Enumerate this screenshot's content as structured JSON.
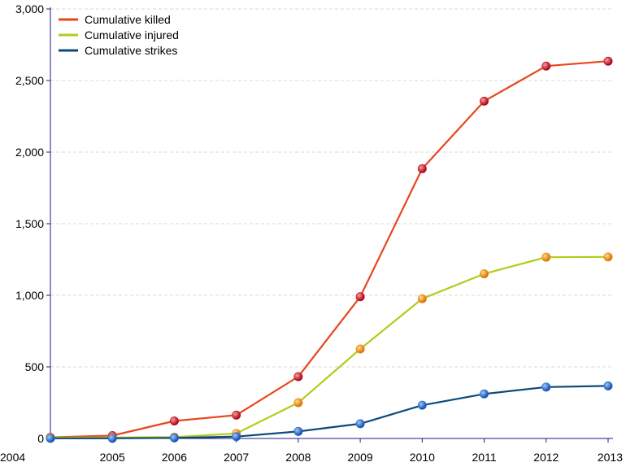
{
  "chart_data": {
    "type": "line",
    "title": "",
    "xlabel": "",
    "ylabel": "",
    "categories": [
      "2004",
      "2005",
      "2006",
      "2007",
      "2008",
      "2009",
      "2010",
      "2011",
      "2012",
      "2013"
    ],
    "ylim": [
      0,
      3000
    ],
    "yticks": [
      0,
      500,
      1000,
      1500,
      2000,
      2500,
      3000
    ],
    "ytick_labels": [
      "0",
      "500",
      "1,000",
      "1,500",
      "2,000",
      "2,500",
      "3,000"
    ],
    "grid": "horizontal-dashed",
    "legend_placement": "top-left",
    "series": [
      {
        "name": "Cumulative killed",
        "color": "#e8451e",
        "marker_color": "#c8102e",
        "values": [
          8,
          20,
          122,
          163,
          432,
          990,
          1884,
          2356,
          2601,
          2635
        ]
      },
      {
        "name": "Cumulative injured",
        "color": "#b3cc1a",
        "marker_color": "#f08a0a",
        "values": [
          6,
          7,
          9,
          35,
          250,
          625,
          976,
          1150,
          1266,
          1268
        ]
      },
      {
        "name": "Cumulative strikes",
        "color": "#0c4a7a",
        "marker_color": "#2a6fc9",
        "values": [
          1,
          1,
          4,
          13,
          49,
          103,
          232,
          311,
          359,
          367
        ]
      }
    ]
  }
}
